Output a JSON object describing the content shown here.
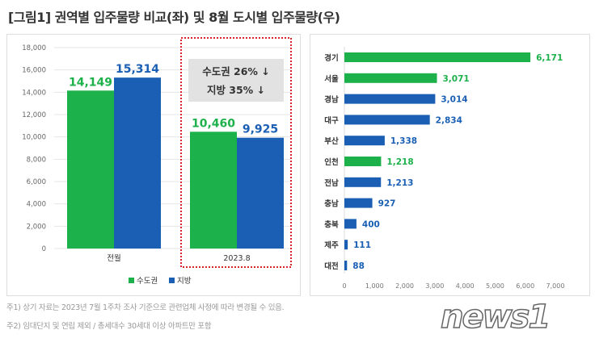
{
  "title": "[그림1]  권역별 입주물량 비교(좌) 및 8월 도시별 입주물량(우)",
  "colors": {
    "capital": "#1db14b",
    "regional": "#1a5fb4",
    "highlight_box": "#d9262b"
  },
  "chart_data": [
    {
      "type": "bar",
      "categories": [
        "전월",
        "2023.8"
      ],
      "series": [
        {
          "name": "수도권",
          "values": [
            14149,
            10460
          ],
          "labels": [
            "14,149",
            "10,460"
          ]
        },
        {
          "name": "지방",
          "values": [
            15314,
            9925
          ],
          "labels": [
            "15,314",
            "9,925"
          ]
        }
      ],
      "ylim": [
        0,
        18000
      ],
      "yticks": [
        "0",
        "2,000",
        "4,000",
        "6,000",
        "8,000",
        "10,000",
        "12,000",
        "14,000",
        "16,000",
        "18,000"
      ],
      "grid": true,
      "legend": "bottom",
      "annotations": [
        "수도권 26% ↓",
        "지방 35% ↓"
      ]
    },
    {
      "type": "bar",
      "orientation": "horizontal",
      "categories": [
        "경기",
        "서울",
        "경남",
        "대구",
        "부산",
        "인천",
        "전남",
        "충남",
        "충북",
        "제주",
        "대전"
      ],
      "values": [
        6171,
        3071,
        3014,
        2834,
        1338,
        1218,
        1213,
        927,
        400,
        111,
        88
      ],
      "labels": [
        "6,171",
        "3,071",
        "3,014",
        "2,834",
        "1,338",
        "1,218",
        "1,213",
        "927",
        "400",
        "111",
        "88"
      ],
      "region": [
        "capital",
        "capital",
        "regional",
        "regional",
        "regional",
        "capital",
        "regional",
        "regional",
        "regional",
        "regional",
        "regional"
      ],
      "xlim": [
        0,
        7000
      ],
      "xticks": [
        "0",
        "1,000",
        "2,000",
        "3,000",
        "4,000",
        "5,000",
        "6,000",
        "7,000"
      ]
    }
  ],
  "notes": [
    "주1) 상기 자료는 2023년 7월 1주차 조사 기준으로 관련업체 사정에 따라 변경될 수 있음.",
    "주2) 임대단지 및 연립 제외 / 총세대수 30세대 이상 아파트만 포함"
  ],
  "logo": "news1"
}
